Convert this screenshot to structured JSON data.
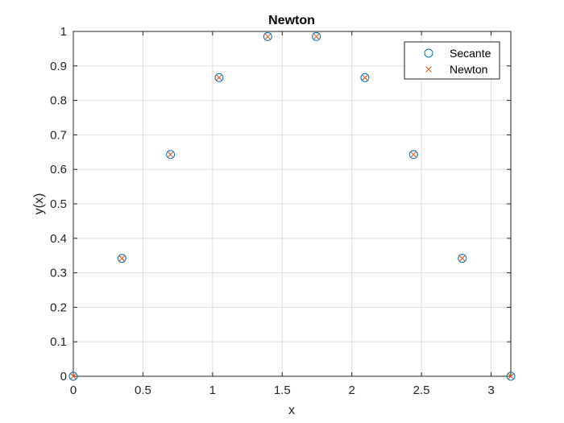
{
  "chart_data": {
    "type": "scatter",
    "title": "Newton",
    "xlabel": "x",
    "ylabel": "y(x)",
    "xlim": [
      0,
      3.1416
    ],
    "ylim": [
      0,
      1
    ],
    "xticks": [
      0,
      0.5,
      1,
      1.5,
      2,
      2.5,
      3
    ],
    "xtick_labels": [
      "0",
      "0.5",
      "1",
      "1.5",
      "2",
      "2.5",
      "3"
    ],
    "yticks": [
      0,
      0.1,
      0.2,
      0.3,
      0.4,
      0.5,
      0.6,
      0.7,
      0.8,
      0.9,
      1
    ],
    "ytick_labels": [
      "0",
      "0.1",
      "0.2",
      "0.3",
      "0.4",
      "0.5",
      "0.6",
      "0.7",
      "0.8",
      "0.9",
      "1"
    ],
    "grid": true,
    "legend_position": "top-right",
    "x": [
      0,
      0.349,
      0.698,
      1.047,
      1.396,
      1.745,
      2.094,
      2.443,
      2.793,
      3.142
    ],
    "series": [
      {
        "name": "Secante",
        "marker": "circle",
        "color": "#0072BD",
        "values": [
          0,
          0.342,
          0.643,
          0.866,
          0.985,
          0.985,
          0.866,
          0.643,
          0.342,
          0
        ]
      },
      {
        "name": "Newton",
        "marker": "x",
        "color": "#D95319",
        "values": [
          0,
          0.342,
          0.643,
          0.866,
          0.985,
          0.985,
          0.866,
          0.643,
          0.342,
          0
        ]
      }
    ]
  }
}
